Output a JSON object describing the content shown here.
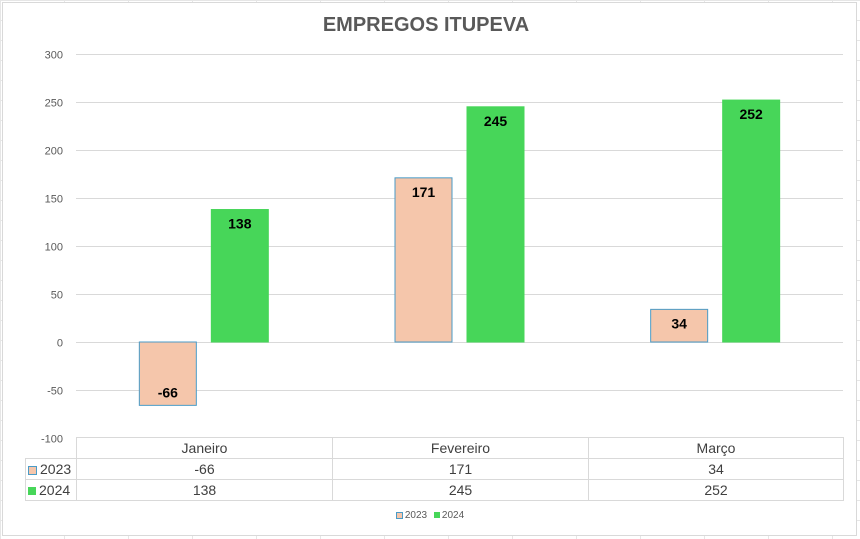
{
  "chart_data": {
    "type": "bar",
    "title": "EMPREGOS ITUPEVA",
    "categories": [
      "Janeiro",
      "Fevereiro",
      "Março"
    ],
    "series": [
      {
        "name": "2023",
        "values": [
          -66,
          171,
          34
        ],
        "color": "#f5c6ab",
        "border": "#4a9bc7"
      },
      {
        "name": "2024",
        "values": [
          138,
          245,
          252
        ],
        "color": "#47d659",
        "border": "#47d659"
      }
    ],
    "ylim": [
      -100,
      300
    ],
    "yticks": [
      300,
      250,
      200,
      150,
      100,
      50,
      0,
      -50,
      -100
    ],
    "grid": true,
    "legend_position": "bottom",
    "data_table": true,
    "xlabel": "",
    "ylabel": ""
  }
}
